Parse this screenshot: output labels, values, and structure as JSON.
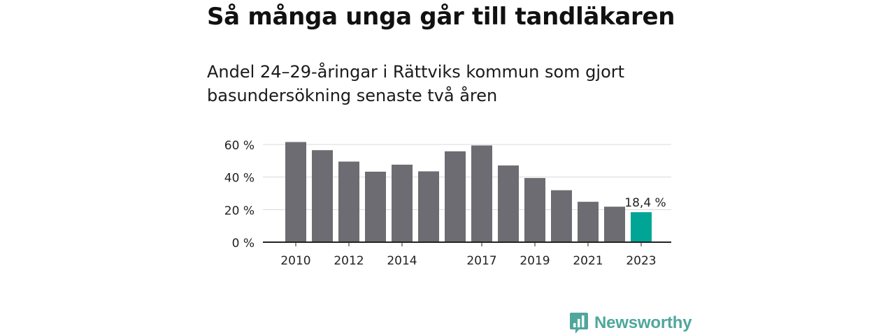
{
  "header": {
    "title": "Så många unga går till tandläkaren",
    "subtitle": "Andel 24–29-åringar i Rättviks kommun som gjort basundersökning senaste två åren"
  },
  "chart_data": {
    "type": "bar",
    "categories": [
      "2010",
      "2011",
      "2012",
      "2013",
      "2014",
      "2015",
      "2016",
      "2017",
      "2018",
      "2019",
      "2020",
      "2021",
      "2022",
      "2023"
    ],
    "x_tick_labels": [
      "2010",
      "",
      "2012",
      "",
      "2014",
      "",
      "",
      "2017",
      "",
      "2019",
      "",
      "2021",
      "",
      "2023"
    ],
    "values": [
      61.5,
      56.5,
      49.5,
      43.3,
      47.6,
      43.5,
      55.8,
      59.4,
      47.1,
      39.4,
      31.9,
      24.8,
      21.8,
      18.4
    ],
    "ylim": [
      0,
      60
    ],
    "y_ticks": [
      0,
      20,
      40,
      60
    ],
    "y_tick_labels": [
      "0 %",
      "20 %",
      "40 %",
      "60 %"
    ],
    "highlight_index": 13,
    "highlight_label": "18,4 %",
    "grid": true,
    "colors": {
      "bar": "#6d6c72",
      "highlight": "#00a596",
      "grid": "#d9d9d9",
      "axis": "#222222"
    }
  },
  "brand": {
    "name": "Newsworthy",
    "icon": "bar-chart-speech-icon",
    "color": "#4fa79b"
  }
}
